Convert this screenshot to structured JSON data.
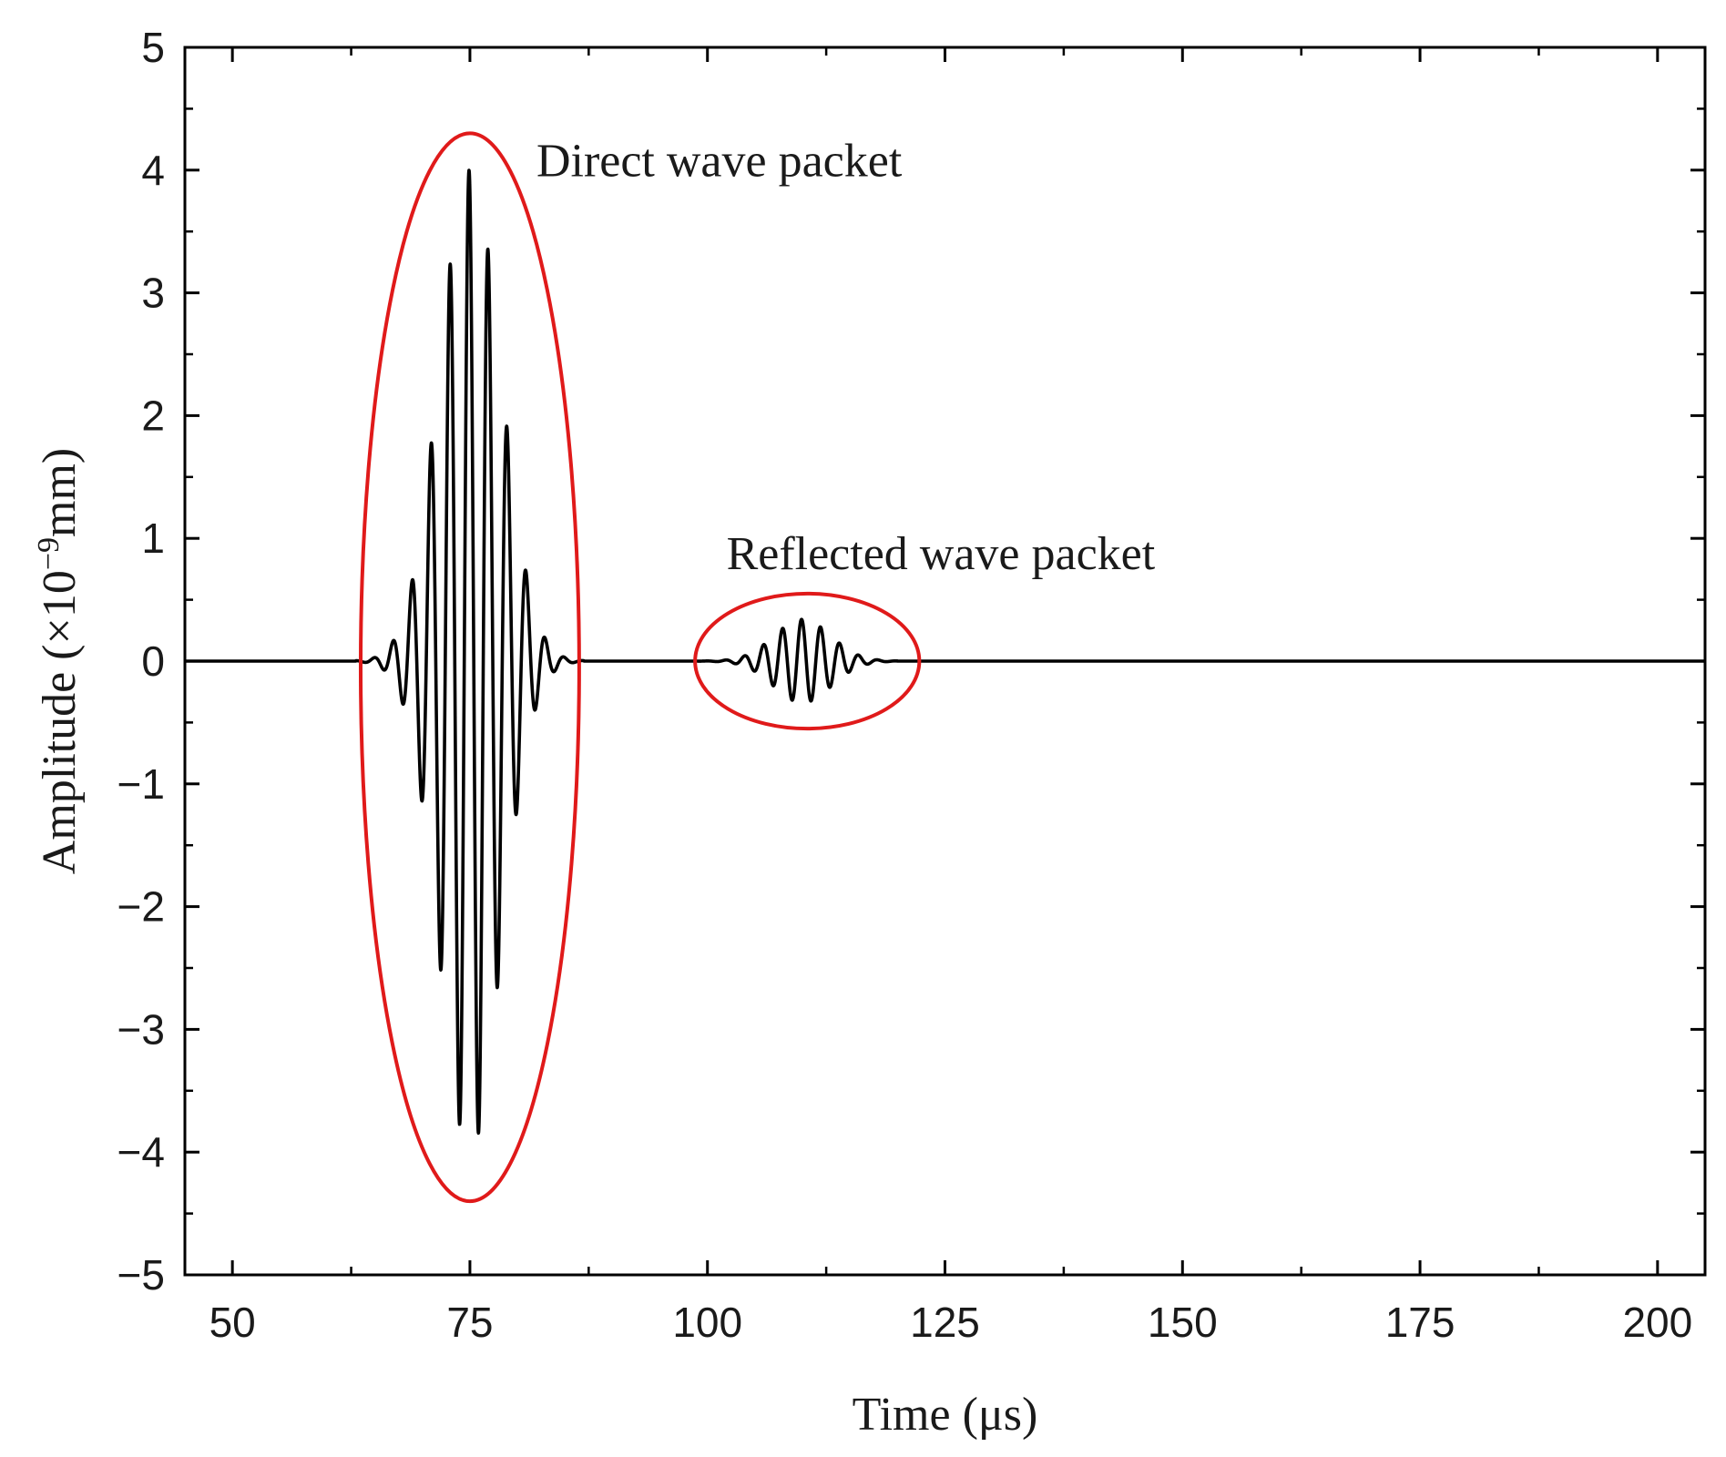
{
  "chart_data": {
    "type": "line",
    "title": "",
    "xlabel": "Time (μs)",
    "ylabel_prefix": "Amplitude (×10",
    "ylabel_exponent": "−9",
    "ylabel_suffix": "mm)",
    "xlim": [
      45,
      205
    ],
    "ylim": [
      -5,
      5
    ],
    "x_ticks": [
      50,
      75,
      100,
      125,
      150,
      175,
      200
    ],
    "x_tick_labels": [
      "50",
      "75",
      "100",
      "125",
      "150",
      "175",
      "200"
    ],
    "y_ticks": [
      -5,
      -4,
      -3,
      -2,
      -1,
      0,
      1,
      2,
      3,
      4,
      5
    ],
    "y_tick_labels": [
      "−5",
      "−4",
      "−3",
      "−2",
      "−1",
      "0",
      "1",
      "2",
      "3",
      "4",
      "5"
    ],
    "grid": false,
    "line_color": "#000000",
    "highlight_color": "#e01a1a",
    "series": [
      {
        "name": "Amplitude",
        "packets": [
          {
            "center": 75,
            "peak": 4.0,
            "sigma": 3.2,
            "period": 2.0,
            "start": 63,
            "end": 87
          },
          {
            "center": 110,
            "peak": 0.34,
            "sigma": 3.0,
            "period": 2.0,
            "start": 99,
            "end": 120
          }
        ]
      }
    ],
    "annotations": [
      {
        "text": "Direct wave packet",
        "x": 82,
        "y": 3.95,
        "ellipse": {
          "cx": 75.0,
          "cy": -0.05,
          "rx": 11.5,
          "ry": 4.35
        }
      },
      {
        "text": "Reflected wave packet",
        "x": 102,
        "y": 0.75,
        "ellipse": {
          "cx": 110.5,
          "cy": 0.0,
          "rx": 11.8,
          "ry": 0.55
        }
      }
    ]
  }
}
